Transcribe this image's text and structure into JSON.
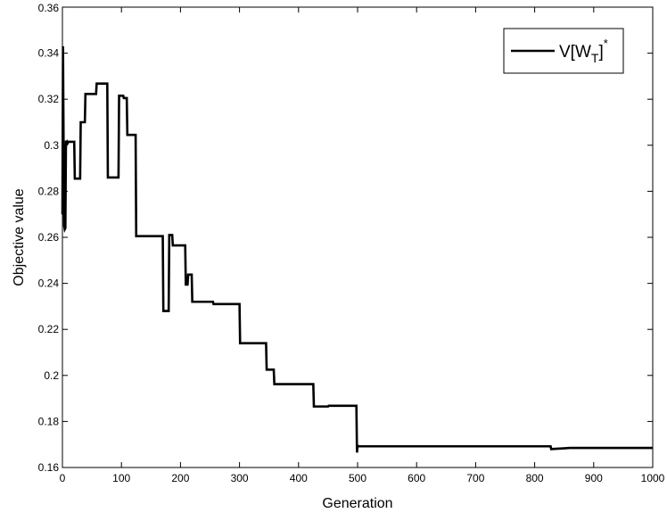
{
  "chart_data": {
    "type": "line",
    "title": "",
    "xlabel": "Generation",
    "ylabel": "Objective value",
    "xlim": [
      0,
      1000
    ],
    "ylim": [
      0.16,
      0.36
    ],
    "x_ticks": [
      "0",
      "100",
      "200",
      "300",
      "400",
      "500",
      "600",
      "700",
      "800",
      "900",
      "1000"
    ],
    "y_ticks": [
      "0.16",
      "0.18",
      "0.2",
      "0.22",
      "0.24",
      "0.26",
      "0.28",
      "0.3",
      "0.32",
      "0.34",
      "0.36"
    ],
    "grid": false,
    "legend_position": "top-right",
    "legend": {
      "base": "V[W",
      "subscript": "T",
      "close": "]",
      "superscript": "*"
    },
    "line_color": "#000000",
    "series": [
      {
        "name": "V[WT]*",
        "x": [
          0,
          1,
          2,
          3,
          4,
          5,
          6,
          7,
          8,
          9,
          10,
          20,
          21,
          30,
          31,
          38,
          39,
          57,
          58,
          76,
          77,
          95,
          96,
          103,
          104,
          109,
          110,
          124,
          125,
          170,
          171,
          180,
          181,
          186,
          187,
          208,
          209,
          212,
          213,
          219,
          220,
          255,
          256,
          300,
          301,
          345,
          346,
          358,
          359,
          425,
          426,
          450,
          451,
          498,
          499,
          500,
          502,
          827,
          828,
          860,
          1000
        ],
        "y": [
          0.27,
          0.343,
          0.299,
          0.265,
          0.2635,
          0.264,
          0.302,
          0.301,
          0.3015,
          0.301,
          0.3015,
          0.3015,
          0.2855,
          0.2855,
          0.31,
          0.31,
          0.3223,
          0.3223,
          0.3268,
          0.3268,
          0.286,
          0.286,
          0.3215,
          0.3215,
          0.3205,
          0.3205,
          0.3045,
          0.3045,
          0.2605,
          0.2605,
          0.228,
          0.228,
          0.261,
          0.261,
          0.2565,
          0.2565,
          0.2395,
          0.2395,
          0.2438,
          0.2438,
          0.232,
          0.232,
          0.231,
          0.231,
          0.214,
          0.214,
          0.2025,
          0.2025,
          0.1962,
          0.1962,
          0.1865,
          0.1865,
          0.1868,
          0.1868,
          0.1665,
          0.1695,
          0.1692,
          0.1692,
          0.168,
          0.1685,
          0.1685
        ]
      }
    ]
  }
}
